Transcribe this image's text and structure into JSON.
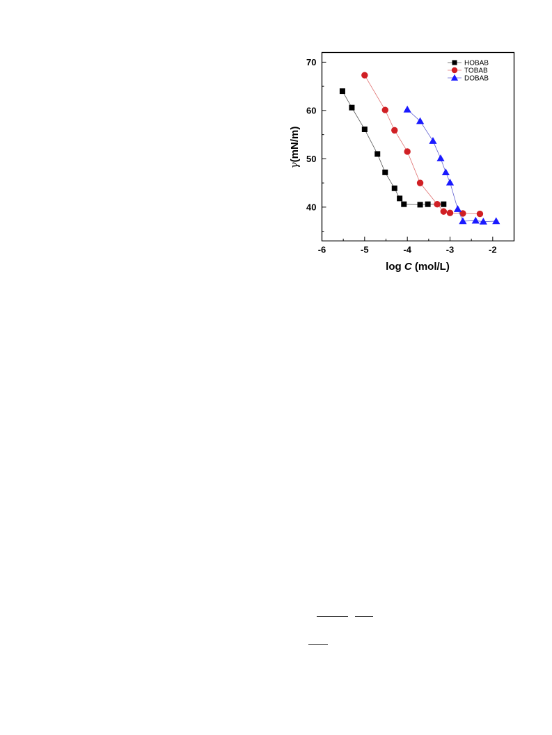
{
  "chart_data": {
    "type": "scatter",
    "xlabel_prefix": "log ",
    "xlabel_var": "C",
    "xlabel_unit": " (mol/L)",
    "ylabel_symbol": "γ",
    "ylabel_unit": "(mN/m)",
    "xlim": [
      -6,
      -1.5
    ],
    "ylim": [
      33,
      72
    ],
    "xticks": [
      -6,
      -5,
      -4,
      -3,
      -2
    ],
    "yticks": [
      40,
      50,
      60,
      70
    ],
    "grid": false,
    "legend_position": "top-right",
    "series": [
      {
        "name": "HOBAB",
        "marker": "square",
        "color": "#000000",
        "line_color": "#555555",
        "x": [
          -5.52,
          -5.3,
          -5.0,
          -4.7,
          -4.52,
          -4.3,
          -4.18,
          -4.08,
          -3.7,
          -3.52,
          -3.15
        ],
        "y": [
          64.0,
          60.6,
          56.1,
          51.0,
          47.2,
          43.9,
          41.8,
          40.6,
          40.5,
          40.6,
          40.6
        ]
      },
      {
        "name": "TOBAB",
        "marker": "circle",
        "color": "#d01f24",
        "line_color": "#e07070",
        "x": [
          -5.0,
          -4.52,
          -4.3,
          -4.0,
          -3.7,
          -3.3,
          -3.15,
          -3.0,
          -2.7,
          -2.3
        ],
        "y": [
          67.3,
          60.1,
          55.9,
          51.5,
          45.0,
          40.6,
          39.1,
          38.8,
          38.7,
          38.6
        ]
      },
      {
        "name": "DOBAB",
        "marker": "triangle",
        "color": "#1a1aff",
        "line_color": "#6060d0",
        "x": [
          -4.0,
          -3.7,
          -3.4,
          -3.22,
          -3.1,
          -3.0,
          -2.82,
          -2.7,
          -2.4,
          -2.22,
          -1.92
        ],
        "y": [
          60.2,
          57.8,
          53.7,
          50.1,
          47.2,
          45.1,
          39.6,
          37.1,
          37.2,
          37.0,
          37.1
        ]
      }
    ]
  }
}
